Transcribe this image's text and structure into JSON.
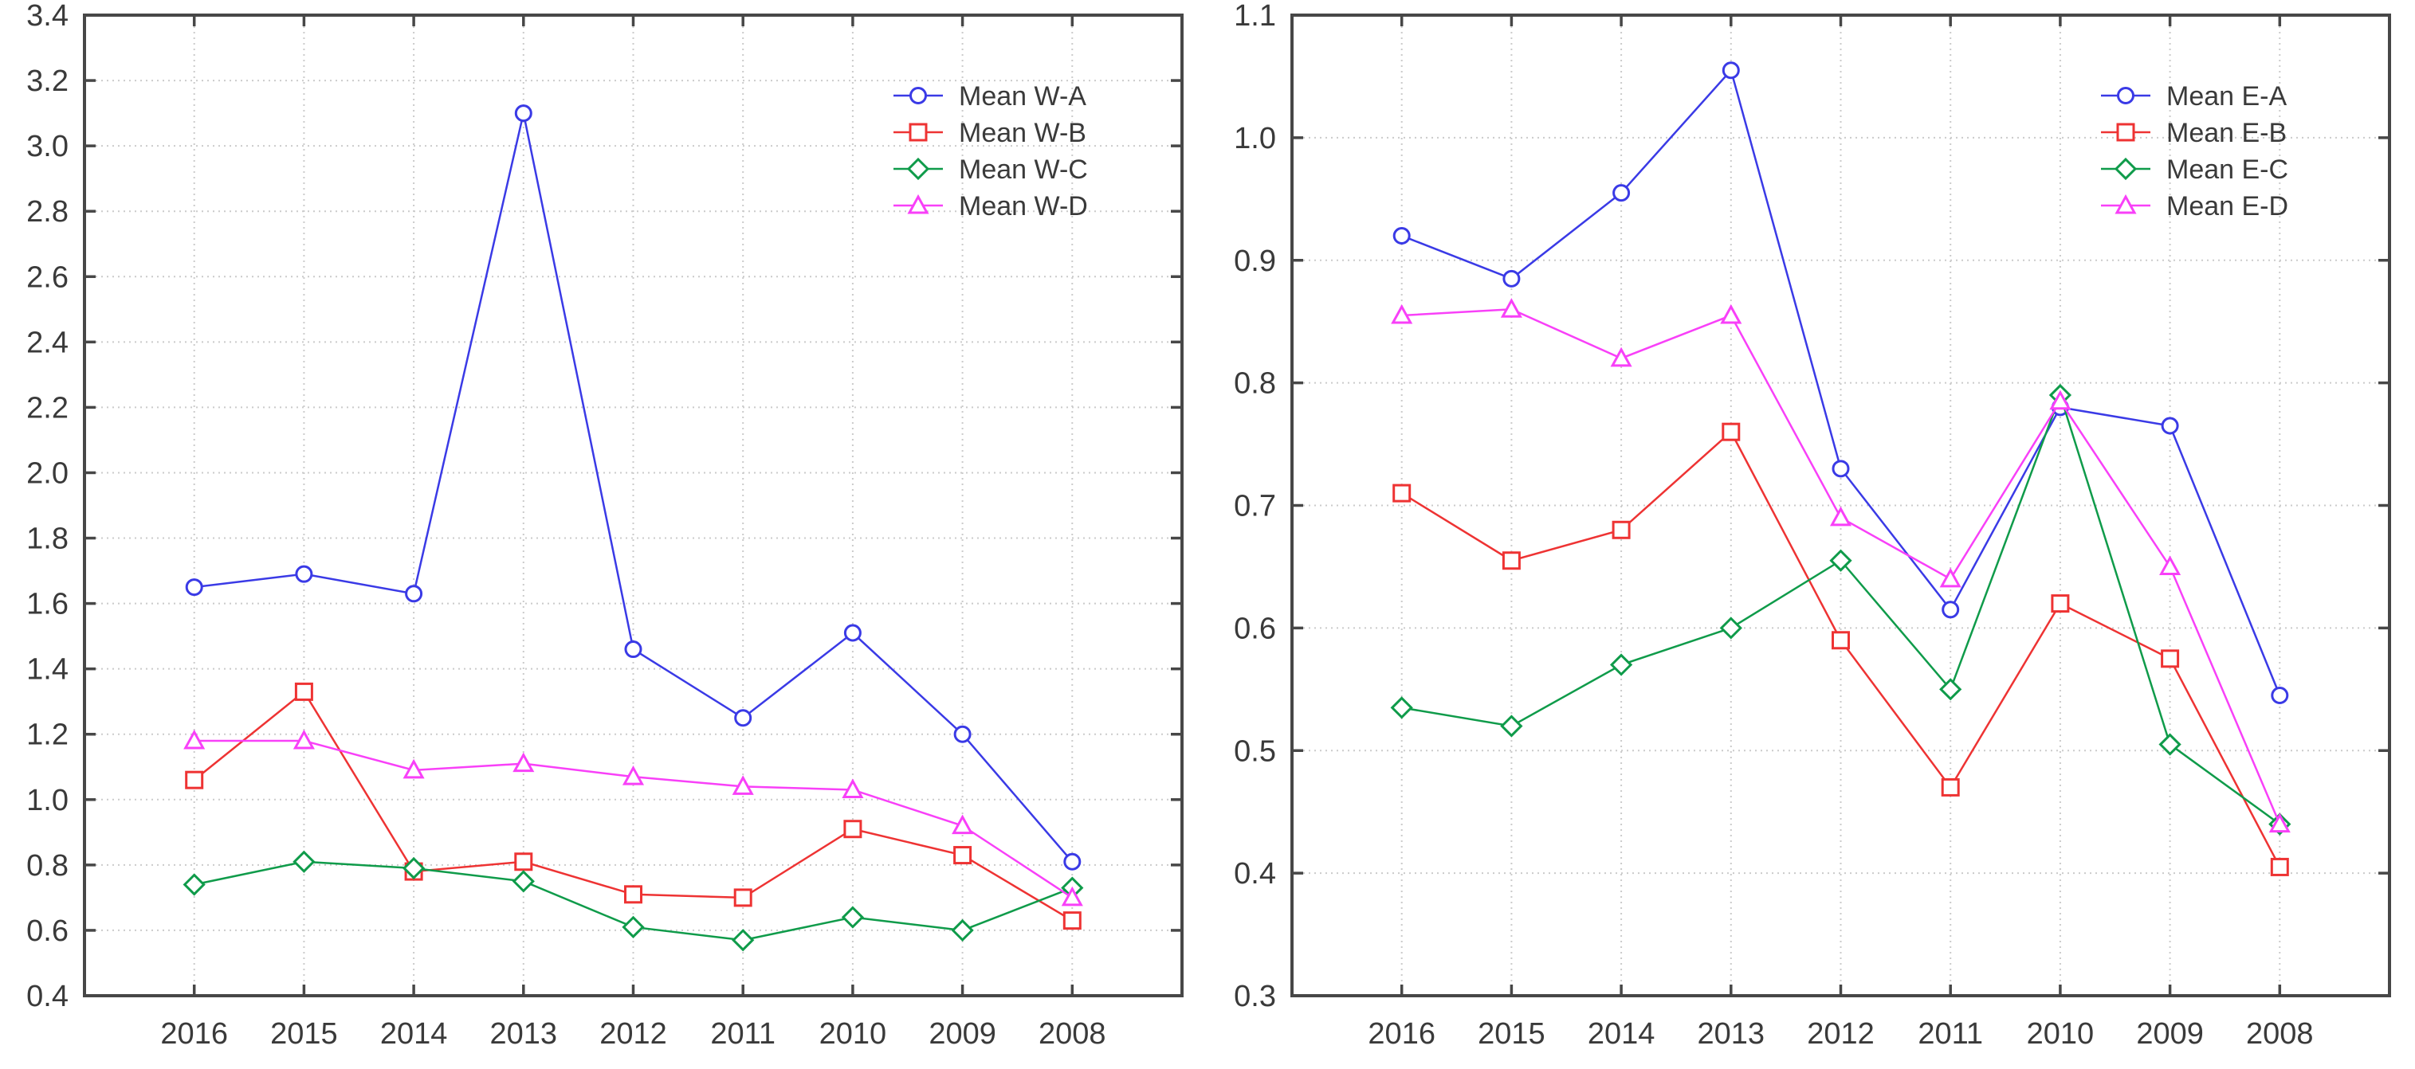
{
  "page": {
    "background": "#ffffff",
    "axis_color": "#474747",
    "grid_color": "#cbcbcb",
    "tick_label_color": "#3a3a3a",
    "legend_text_color": "#3a3a3a"
  },
  "chart_data": [
    {
      "type": "line",
      "title": "",
      "xlabel": "",
      "ylabel": "",
      "grid": true,
      "legend_position": "top-right",
      "categories": [
        "2016",
        "2015",
        "2014",
        "2013",
        "2012",
        "2011",
        "2010",
        "2009",
        "2008"
      ],
      "ylim": [
        0.4,
        3.4
      ],
      "ytick_step": 0.2,
      "ytick_decimals": 1,
      "series": [
        {
          "name": "Mean W-A",
          "color": "#3a3ae6",
          "marker": "circle",
          "values": [
            1.65,
            1.69,
            1.63,
            3.1,
            1.46,
            1.25,
            1.51,
            1.2,
            0.81
          ]
        },
        {
          "name": "Mean W-B",
          "color": "#ee3333",
          "marker": "square",
          "values": [
            1.06,
            1.33,
            0.78,
            0.81,
            0.71,
            0.7,
            0.91,
            0.83,
            0.63
          ]
        },
        {
          "name": "Mean W-C",
          "color": "#0f9b4a",
          "marker": "diamond",
          "values": [
            0.74,
            0.81,
            0.79,
            0.75,
            0.61,
            0.57,
            0.64,
            0.6,
            0.73
          ]
        },
        {
          "name": "Mean W-D",
          "color": "#f840f8",
          "marker": "triangle",
          "values": [
            1.18,
            1.18,
            1.09,
            1.11,
            1.07,
            1.04,
            1.03,
            0.92,
            0.7
          ]
        }
      ]
    },
    {
      "type": "line",
      "title": "",
      "xlabel": "",
      "ylabel": "",
      "grid": true,
      "legend_position": "top-right",
      "categories": [
        "2016",
        "2015",
        "2014",
        "2013",
        "2012",
        "2011",
        "2010",
        "2009",
        "2008"
      ],
      "ylim": [
        0.3,
        1.1
      ],
      "ytick_step": 0.1,
      "ytick_decimals": 1,
      "series": [
        {
          "name": "Mean E-A",
          "color": "#3a3ae6",
          "marker": "circle",
          "values": [
            0.92,
            0.885,
            0.955,
            1.055,
            0.73,
            0.615,
            0.78,
            0.765,
            0.545
          ]
        },
        {
          "name": "Mean E-B",
          "color": "#ee3333",
          "marker": "square",
          "values": [
            0.71,
            0.655,
            0.68,
            0.76,
            0.59,
            0.47,
            0.62,
            0.575,
            0.405
          ]
        },
        {
          "name": "Mean E-C",
          "color": "#0f9b4a",
          "marker": "diamond",
          "values": [
            0.535,
            0.52,
            0.57,
            0.6,
            0.655,
            0.55,
            0.79,
            0.505,
            0.44
          ]
        },
        {
          "name": "Mean E-D",
          "color": "#f840f8",
          "marker": "triangle",
          "values": [
            0.855,
            0.86,
            0.82,
            0.855,
            0.69,
            0.64,
            0.785,
            0.65,
            0.44
          ]
        }
      ]
    }
  ]
}
